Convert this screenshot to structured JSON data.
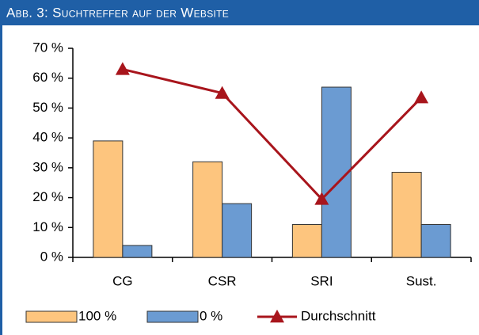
{
  "chart_data": {
    "type": "bar-line",
    "title": "Abb. 3: Suchtreffer auf der Website",
    "categories": [
      "CG",
      "CSR",
      "SRI",
      "Sust."
    ],
    "series": [
      {
        "name": "100 %",
        "type": "bar",
        "color": "#fdc57e",
        "values": [
          39,
          32,
          11,
          28.5
        ]
      },
      {
        "name": "0 %",
        "type": "bar",
        "color": "#6b9bd2",
        "values": [
          4,
          18,
          57,
          11
        ]
      },
      {
        "name": "Durchschnitt",
        "type": "line",
        "color": "#a8151c",
        "values": [
          63,
          55,
          19.5,
          53.5
        ]
      }
    ],
    "ylim": [
      0,
      70
    ],
    "yticks": [
      {
        "value": 0,
        "label": "0 %"
      },
      {
        "value": 10,
        "label": "10 %"
      },
      {
        "value": 20,
        "label": "20 %"
      },
      {
        "value": 30,
        "label": "30 %"
      },
      {
        "value": 40,
        "label": "40 %"
      },
      {
        "value": 50,
        "label": "50 %"
      },
      {
        "value": 60,
        "label": "60 %"
      },
      {
        "value": 70,
        "label": "70 %"
      }
    ],
    "grid": false
  }
}
